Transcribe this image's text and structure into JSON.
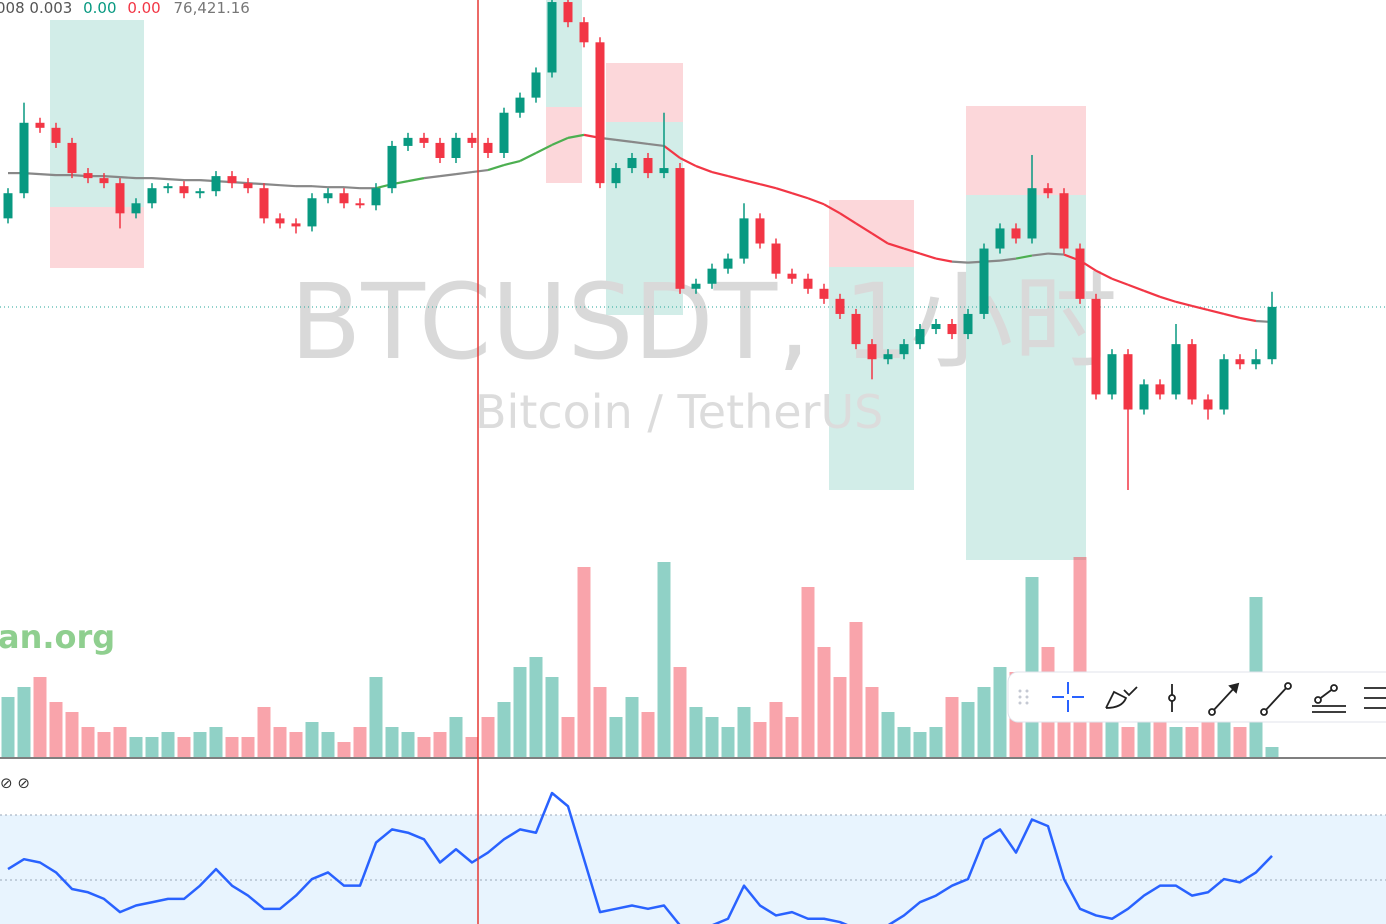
{
  "header": {
    "values": [
      "008 0.003",
      "0.00",
      "0.00",
      "76,421.16"
    ]
  },
  "watermark": {
    "symbol": "BTCUSDT, 1小时",
    "name": "Bitcoin / TetherUS"
  },
  "source": "an.org",
  "indicator_icons": "⊘ ⊘",
  "up_color": "#089981",
  "down_color": "#f23645",
  "candles": [
    [
      77125,
      77365,
      77085,
      77325
    ],
    [
      77325,
      78045,
      77285,
      77885
    ],
    [
      77885,
      77925,
      77805,
      77845
    ],
    [
      77845,
      77885,
      77685,
      77725
    ],
    [
      77725,
      77765,
      77445,
      77485
    ],
    [
      77485,
      77525,
      77405,
      77445
    ],
    [
      77445,
      77485,
      77365,
      77405
    ],
    [
      77405,
      77445,
      77045,
      77165
    ],
    [
      77165,
      77285,
      77125,
      77245
    ],
    [
      77245,
      77405,
      77205,
      77365
    ],
    [
      77365,
      77405,
      77325,
      77381
    ],
    [
      77381,
      77421,
      77285,
      77325
    ],
    [
      77325,
      77365,
      77285,
      77341
    ],
    [
      77341,
      77501,
      77301,
      77461
    ],
    [
      77461,
      77501,
      77365,
      77405
    ],
    [
      77405,
      77445,
      77325,
      77365
    ],
    [
      77365,
      77405,
      77085,
      77125
    ],
    [
      77125,
      77165,
      77045,
      77085
    ],
    [
      77085,
      77125,
      77005,
      77061
    ],
    [
      77061,
      77325,
      77021,
      77285
    ],
    [
      77285,
      77365,
      77245,
      77325
    ],
    [
      77325,
      77365,
      77205,
      77245
    ],
    [
      77245,
      77285,
      77205,
      77229
    ],
    [
      77229,
      77405,
      77189,
      77365
    ],
    [
      77365,
      77741,
      77325,
      77701
    ],
    [
      77701,
      77805,
      77661,
      77765
    ],
    [
      77765,
      77805,
      77685,
      77725
    ],
    [
      77725,
      77765,
      77565,
      77605
    ],
    [
      77605,
      77805,
      77565,
      77765
    ],
    [
      77765,
      77805,
      77685,
      77725
    ],
    [
      77725,
      77765,
      77605,
      77645
    ],
    [
      77645,
      78005,
      77605,
      77965
    ],
    [
      77965,
      78125,
      77925,
      78085
    ],
    [
      78085,
      78325,
      78045,
      78285
    ],
    [
      78285,
      78925,
      78245,
      78845
    ],
    [
      78845,
      78885,
      78645,
      78685
    ],
    [
      78685,
      78725,
      78485,
      78525
    ],
    [
      78525,
      78565,
      77365,
      77405
    ],
    [
      77405,
      77565,
      77365,
      77525
    ],
    [
      77525,
      77645,
      77485,
      77605
    ],
    [
      77605,
      77645,
      77445,
      77485
    ],
    [
      77485,
      77965,
      77445,
      77525
    ],
    [
      77525,
      77565,
      76525,
      76565
    ],
    [
      76565,
      76645,
      76525,
      76605
    ],
    [
      76605,
      76765,
      76565,
      76725
    ],
    [
      76725,
      76845,
      76685,
      76805
    ],
    [
      76805,
      77245,
      76765,
      77125
    ],
    [
      77125,
      77165,
      76885,
      76925
    ],
    [
      76925,
      76965,
      76645,
      76685
    ],
    [
      76685,
      76725,
      76605,
      76645
    ],
    [
      76645,
      76685,
      76525,
      76565
    ],
    [
      76565,
      76605,
      76445,
      76485
    ],
    [
      76485,
      76525,
      76325,
      76365
    ],
    [
      76365,
      76405,
      76085,
      76125
    ],
    [
      76125,
      76165,
      75845,
      76005
    ],
    [
      76005,
      76085,
      75965,
      76045
    ],
    [
      76045,
      76165,
      76005,
      76125
    ],
    [
      76125,
      76285,
      76085,
      76245
    ],
    [
      76245,
      76325,
      76205,
      76285
    ],
    [
      76285,
      76325,
      76165,
      76205
    ],
    [
      76205,
      76405,
      76165,
      76365
    ],
    [
      76365,
      76925,
      76325,
      76885
    ],
    [
      76885,
      77085,
      76845,
      77045
    ],
    [
      77045,
      77085,
      76925,
      76965
    ],
    [
      76965,
      77629,
      76925,
      77365
    ],
    [
      77365,
      77405,
      77285,
      77325
    ],
    [
      77325,
      77365,
      76845,
      76885
    ],
    [
      76885,
      76925,
      76445,
      76485
    ],
    [
      76485,
      76525,
      75685,
      75725
    ],
    [
      75725,
      76085,
      75685,
      76045
    ],
    [
      76045,
      76085,
      74965,
      75605
    ],
    [
      75605,
      75845,
      75565,
      75805
    ],
    [
      75805,
      75845,
      75685,
      75725
    ],
    [
      75725,
      76285,
      75685,
      76125
    ],
    [
      76125,
      76165,
      75645,
      75685
    ],
    [
      75685,
      75725,
      75525,
      75605
    ],
    [
      75605,
      76045,
      75565,
      76005
    ],
    [
      76005,
      76045,
      75925,
      75965
    ],
    [
      75965,
      76085,
      75925,
      76005
    ],
    [
      76005,
      76541,
      75965,
      76421.16
    ]
  ],
  "moving_average": [
    77485,
    77485,
    77477,
    77469,
    77469,
    77461,
    77461,
    77453,
    77445,
    77445,
    77437,
    77429,
    77429,
    77421,
    77413,
    77405,
    77397,
    77389,
    77381,
    77381,
    77373,
    77373,
    77365,
    77365,
    77397,
    77421,
    77445,
    77461,
    77477,
    77493,
    77509,
    77549,
    77581,
    77645,
    77709,
    77765,
    77789,
    77765,
    77749,
    77733,
    77717,
    77701,
    77605,
    77541,
    77493,
    77461,
    77429,
    77397,
    77365,
    77325,
    77285,
    77237,
    77165,
    77085,
    77005,
    76925,
    76885,
    76845,
    76805,
    76781,
    76773,
    76781,
    76789,
    76805,
    76829,
    76845,
    76837,
    76789,
    76709,
    76645,
    76597,
    76549,
    76501,
    76461,
    76429,
    76397,
    76365,
    76333,
    76309,
    76301
  ],
  "volume": [
    600,
    700,
    800,
    550,
    450,
    300,
    250,
    300,
    200,
    200,
    250,
    200,
    250,
    300,
    200,
    200,
    500,
    300,
    250,
    350,
    250,
    150,
    300,
    800,
    300,
    250,
    200,
    250,
    400,
    200,
    400,
    550,
    900,
    1000,
    800,
    400,
    1900,
    700,
    400,
    600,
    450,
    1950,
    900,
    500,
    400,
    300,
    500,
    350,
    550,
    400,
    1700,
    1100,
    800,
    1350,
    700,
    450,
    300,
    250,
    300,
    600,
    550,
    700,
    900,
    850,
    1800,
    1100,
    700,
    2000,
    500,
    400,
    300,
    350,
    600,
    300,
    300,
    350,
    400,
    300,
    1600,
    100
  ],
  "rsi": [
    53,
    56,
    55,
    52,
    47,
    46,
    44,
    40,
    42,
    43,
    44,
    44,
    48,
    53,
    48,
    45,
    41,
    41,
    45,
    50,
    52,
    48,
    48,
    61,
    65,
    64,
    62,
    55,
    59,
    55,
    58,
    62,
    65,
    64,
    76,
    72,
    56,
    40,
    41,
    42,
    41,
    42,
    36,
    35,
    36,
    38,
    48,
    42,
    39,
    40,
    38,
    38,
    37,
    35,
    34,
    36,
    39,
    43,
    45,
    48,
    50,
    62,
    65,
    58,
    68,
    66,
    50,
    41,
    39,
    38,
    41,
    45,
    48,
    48,
    45,
    46,
    50,
    49,
    52,
    57
  ]
}
